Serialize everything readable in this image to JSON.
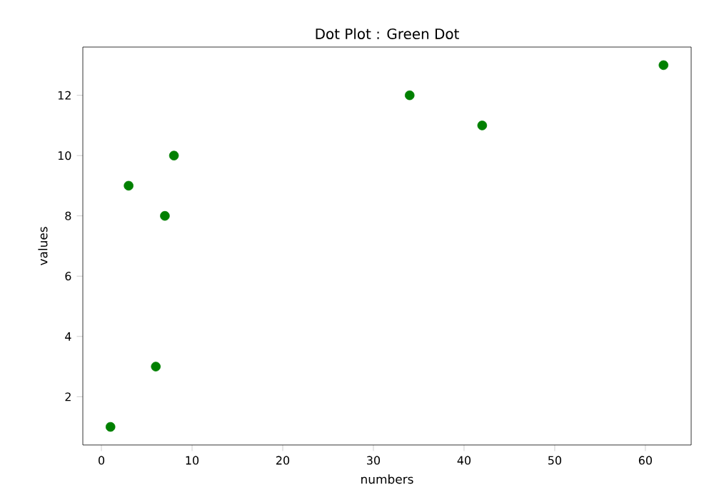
{
  "chart_data": {
    "type": "scatter",
    "title": "Dot Plot : Green Dot",
    "xlabel": "numbers",
    "ylabel": "values",
    "x": [
      1,
      3,
      6,
      7,
      8,
      34,
      42,
      62
    ],
    "series": [
      {
        "color": "#008000",
        "values": [
          1,
          9,
          3,
          8,
          10,
          12,
          11,
          13
        ]
      }
    ],
    "xlim": [
      -2.05,
      65.05
    ],
    "ylim": [
      0.4,
      13.6
    ],
    "xticks": [
      0,
      10,
      20,
      30,
      40,
      50,
      60
    ],
    "yticks": [
      2,
      4,
      6,
      8,
      10,
      12
    ],
    "grid": false
  }
}
